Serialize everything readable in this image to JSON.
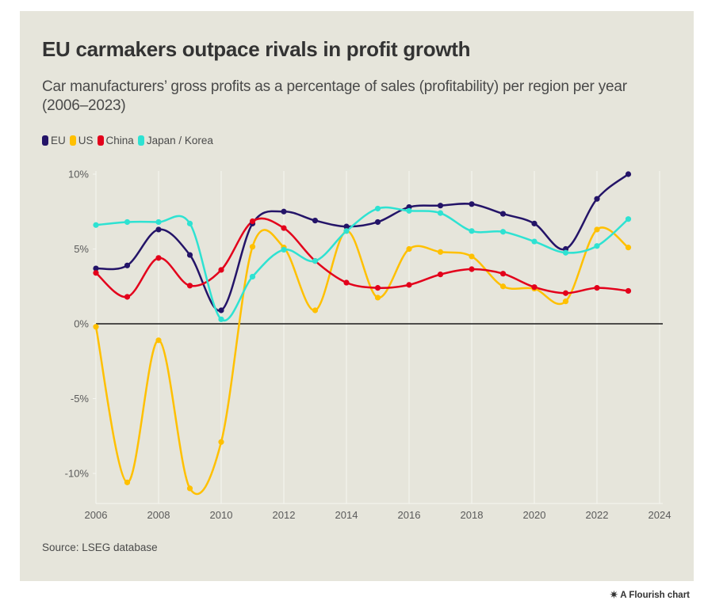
{
  "header": {
    "title": "EU carmakers outpace rivals in profit growth",
    "subtitle": "Car manufacturers’ gross profits as a percentage of sales (profitability) per region per year (2006–2023)"
  },
  "footer": {
    "source": "Source: LSEG database",
    "badge": "A Flourish chart",
    "badge_icon": "flourish-star-icon"
  },
  "chart_data": {
    "type": "line",
    "title": "EU carmakers outpace rivals in profit growth",
    "subtitle": "Car manufacturers’ gross profits as a percentage of sales (profitability) per region per year (2006–2023)",
    "xlabel": "",
    "ylabel": "",
    "x": [
      2006,
      2007,
      2008,
      2009,
      2010,
      2011,
      2012,
      2013,
      2014,
      2015,
      2016,
      2017,
      2018,
      2019,
      2020,
      2021,
      2022,
      2023
    ],
    "xlim": [
      2006,
      2024
    ],
    "ylim": [
      -12,
      10
    ],
    "x_ticks": [
      2006,
      2008,
      2010,
      2012,
      2014,
      2016,
      2018,
      2020,
      2022,
      2024
    ],
    "x_tick_labels": [
      "2006",
      "2008",
      "2010",
      "2012",
      "2014",
      "2016",
      "2018",
      "2020",
      "2022",
      "2024"
    ],
    "y_ticks": [
      10,
      5,
      0,
      -5,
      -10
    ],
    "y_tick_labels": [
      "10%",
      "5%",
      "0%",
      "-5%",
      "-10%"
    ],
    "grid": "vertical",
    "legend_position": "top-left",
    "series": [
      {
        "name": "EU",
        "color": "#241468",
        "values": [
          3.7,
          3.9,
          6.3,
          4.6,
          0.9,
          6.7,
          7.5,
          6.9,
          6.5,
          6.8,
          7.8,
          7.9,
          8.0,
          7.35,
          6.7,
          5.0,
          8.35,
          10.0
        ]
      },
      {
        "name": "US",
        "color": "#ffc000",
        "values": [
          -0.2,
          -10.6,
          -1.1,
          -11.0,
          -7.9,
          5.15,
          5.1,
          0.9,
          6.2,
          1.75,
          5.0,
          4.8,
          4.5,
          2.5,
          2.35,
          1.5,
          6.3,
          5.1
        ]
      },
      {
        "name": "China",
        "color": "#e3001b",
        "values": [
          3.4,
          1.8,
          4.4,
          2.55,
          3.6,
          6.85,
          6.4,
          4.2,
          2.75,
          2.4,
          2.6,
          3.3,
          3.65,
          3.35,
          2.45,
          2.05,
          2.4,
          2.2
        ]
      },
      {
        "name": "Japan / Korea",
        "color": "#2ee2d2",
        "values": [
          6.6,
          6.8,
          6.8,
          6.7,
          0.3,
          3.15,
          4.95,
          4.2,
          6.2,
          7.7,
          7.55,
          7.4,
          6.2,
          6.15,
          5.5,
          4.75,
          5.2,
          7.0
        ]
      }
    ]
  }
}
